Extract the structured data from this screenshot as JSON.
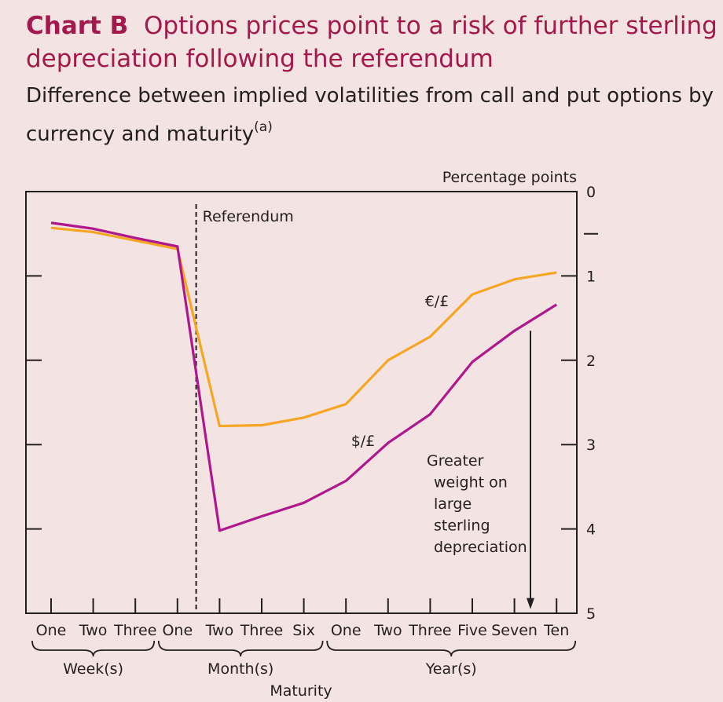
{
  "header": {
    "chart_label": "Chart B",
    "title": "Options prices point to a risk of further sterling depreciation following the referendum",
    "subtitle": "Difference between implied volatilities from call and put options by currency and maturity",
    "footnote_marker": "(a)"
  },
  "chart_data": {
    "type": "line",
    "ylabel": "Percentage points",
    "ylim": [
      5,
      0
    ],
    "y_ticks": [
      "0",
      "1",
      "2",
      "3",
      "4",
      "5"
    ],
    "y_minor_tick_at": 0.5,
    "y_inverted": true,
    "grid": false,
    "categories": [
      "One",
      "Two",
      "Three",
      "One",
      "Two",
      "Three",
      "Six",
      "One",
      "Two",
      "Three",
      "Five",
      "Seven",
      "Ten"
    ],
    "groups": [
      {
        "label": "Week(s)",
        "from": 0,
        "to": 3
      },
      {
        "label": "Month(s)",
        "from": 3,
        "to": 7
      },
      {
        "label": "Year(s)",
        "from": 7,
        "to": 13
      }
    ],
    "xlabel": "Maturity",
    "series": [
      {
        "name": "€/£",
        "color": "#f6a623",
        "values": [
          0.43,
          0.48,
          0.58,
          0.68,
          2.78,
          2.77,
          2.68,
          2.52,
          2.0,
          1.72,
          1.22,
          1.04,
          0.96
        ]
      },
      {
        "name": "$/£",
        "color": "#b0178d",
        "values": [
          0.37,
          0.44,
          0.55,
          0.65,
          4.02,
          3.85,
          3.69,
          3.43,
          2.98,
          2.64,
          2.02,
          1.65,
          1.34
        ]
      }
    ],
    "annotations": {
      "event_label": "Referendum",
      "event_position": 3.5,
      "arrow_label": [
        "Greater",
        "weight on",
        "large",
        "sterling",
        "depreciation"
      ],
      "arrow_from": 1.65,
      "arrow_to": 4.95
    }
  }
}
